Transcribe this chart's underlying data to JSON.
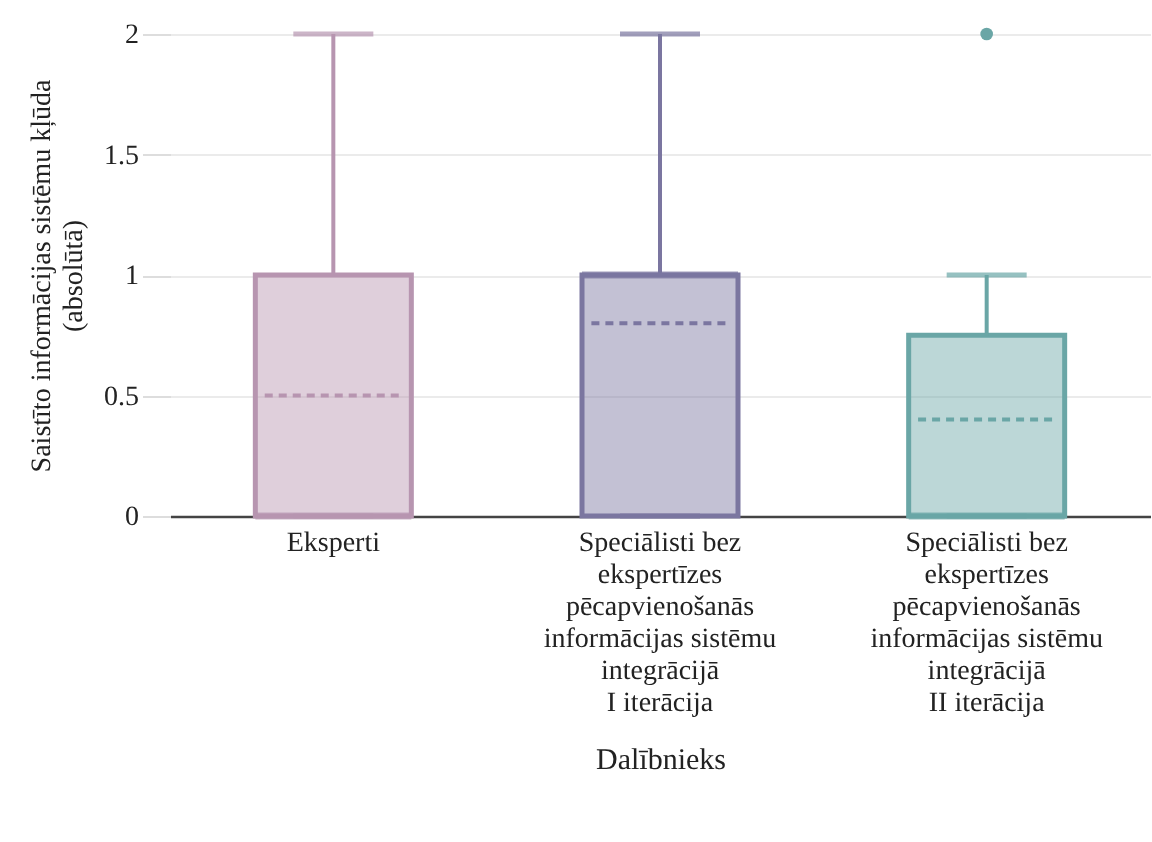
{
  "chart_data": {
    "type": "box",
    "categories": [
      "Eksperti",
      "Speciālisti bez\nekspertīzes\npēcapvienošanās\ninformācijas sistēmu\nintegrācijā\nI iterācija",
      "Speciālisti bez\nekspertīzes\npēcapvienošanās\ninformācijas sistēmu\nintegrācijā\nII iterācija"
    ],
    "boxes": [
      {
        "low": 0,
        "q1": 0,
        "median": 0,
        "q3": 1,
        "high": 2,
        "mean": 0.5
      },
      {
        "low": 0,
        "q1": 0,
        "median": 1,
        "q3": 1,
        "high": 2,
        "mean": 0.8
      },
      {
        "low": 0,
        "q1": 0,
        "median": 0,
        "q3": 0.75,
        "high": 1,
        "mean": 0.4,
        "outliers": [
          2
        ]
      }
    ],
    "colors": [
      "#b795b0",
      "#7b76a0",
      "#6aa6a6"
    ],
    "xlabel": "Dalībnieks",
    "ylabel": "Saistīto informācijas sistēmu kļūda\n(absolūtā)",
    "ylim": [
      0,
      2
    ],
    "yticks": [
      0,
      0.5,
      1,
      1.5,
      2
    ],
    "grid": "y"
  }
}
